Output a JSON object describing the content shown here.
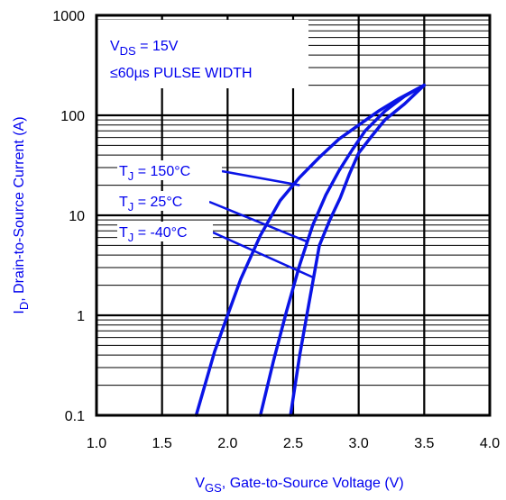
{
  "chart_data": {
    "type": "line",
    "x_scale": "linear",
    "y_scale": "log",
    "xlim": [
      1.0,
      4.0
    ],
    "ylim": [
      0.1,
      1000
    ],
    "x_ticks": [
      "1.0",
      "1.5",
      "2.0",
      "2.5",
      "3.0",
      "3.5",
      "4.0"
    ],
    "y_ticks": [
      "0.1",
      "1",
      "10",
      "100",
      "1000"
    ],
    "xlabel": {
      "main": "V",
      "sub": "GS",
      "rest": ", Gate-to-Source Voltage (V)"
    },
    "ylabel": {
      "main": "I",
      "sub": "D",
      "rest": ", Drain-to-Source Current (A)"
    },
    "grid": true,
    "annotation": {
      "line1": {
        "main": "V",
        "sub": "DS",
        "rest": " = 15V"
      },
      "line2": "≤60µs PULSE WIDTH"
    },
    "series": [
      {
        "name": {
          "main": "T",
          "sub": "J",
          "rest": " = 150°C"
        },
        "x": [
          1.76,
          1.9,
          2.0,
          2.1,
          2.25,
          2.4,
          2.55,
          2.7,
          2.85,
          3.0,
          3.15,
          3.3,
          3.5
        ],
        "y": [
          0.1,
          0.43,
          1.0,
          2.3,
          6.3,
          14,
          24,
          38,
          58,
          80,
          110,
          145,
          200
        ]
      },
      {
        "name": {
          "main": "T",
          "sub": "J",
          "rest": " = 25°C"
        },
        "x": [
          2.25,
          2.35,
          2.45,
          2.55,
          2.65,
          2.75,
          2.85,
          2.95,
          3.05,
          3.2,
          3.35,
          3.5
        ],
        "y": [
          0.1,
          0.35,
          1.1,
          3.2,
          8.0,
          16,
          28,
          45,
          70,
          110,
          155,
          200
        ]
      },
      {
        "name": {
          "main": "T",
          "sub": "J",
          "rest": " = -40°C"
        },
        "x": [
          2.48,
          2.55,
          2.62,
          2.7,
          2.78,
          2.86,
          2.93,
          3.0,
          3.1,
          3.2,
          3.35,
          3.5
        ],
        "y": [
          0.1,
          0.4,
          1.3,
          5.0,
          9.0,
          15,
          26,
          42,
          62,
          90,
          130,
          200
        ]
      }
    ],
    "label_targets": [
      {
        "x": 2.55,
        "y": 20
      },
      {
        "x": 2.6,
        "y": 5.5
      },
      {
        "x": 2.65,
        "y": 2.4
      }
    ],
    "colors": {
      "curve": "#0a14e6",
      "label": "#0000ee",
      "axis": "#000000"
    }
  }
}
